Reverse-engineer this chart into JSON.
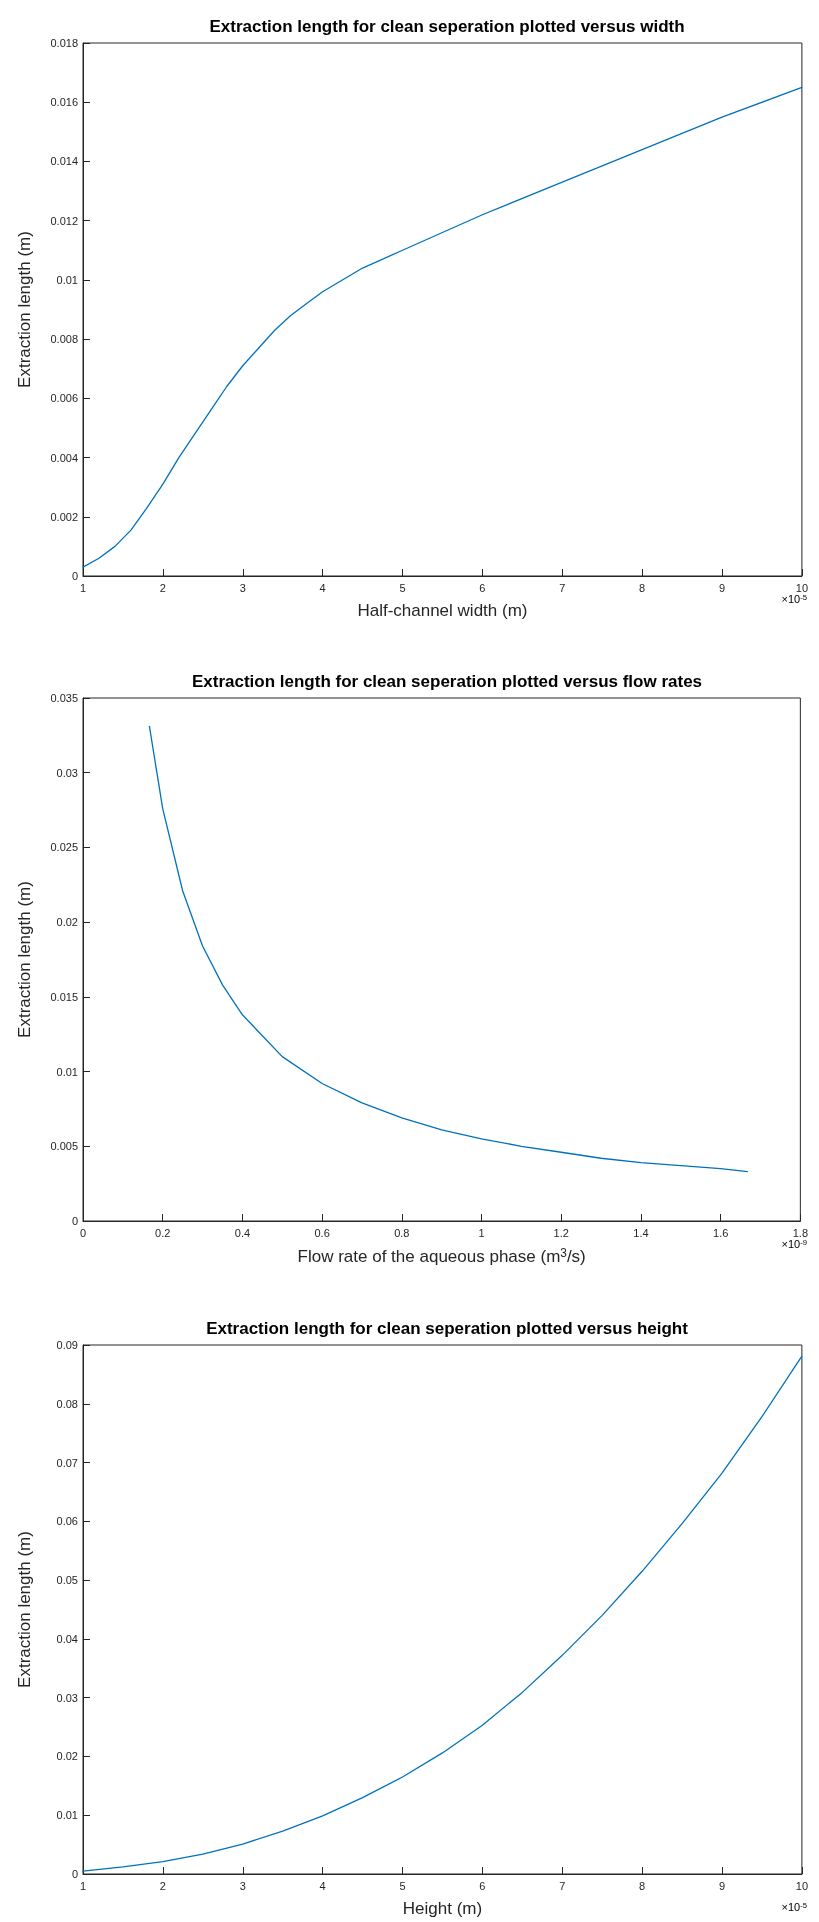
{
  "chart_data": [
    {
      "type": "line",
      "title": "Extraction length for clean seperation plotted versus width",
      "xlabel": "Half-channel width (m)",
      "ylabel": "Extraction length (m)",
      "annotations": [
        "×10$^{-5}$"
      ],
      "x": [
        1,
        1.2,
        1.4,
        1.6,
        1.8,
        2,
        2.2,
        2.4,
        2.6,
        2.8,
        3,
        3.2,
        3.4,
        3.6,
        3.8,
        4,
        4.5,
        5,
        5.5,
        6,
        7,
        8,
        9,
        10
      ],
      "series": [
        {
          "color": "#0072bd",
          "values": [
            0.0003,
            0.0006,
            0.001,
            0.00155,
            0.0023,
            0.0031,
            0.004,
            0.0048,
            0.0056,
            0.0064,
            0.0071,
            0.0077,
            0.0083,
            0.0088,
            0.0092,
            0.0096,
            0.0104,
            0.011,
            0.0116,
            0.0122,
            0.0133,
            0.0144,
            0.0155,
            0.0165
          ]
        }
      ],
      "xlim": [
        1,
        10
      ],
      "xticks": [
        1,
        2,
        3,
        4,
        5,
        6,
        7,
        8,
        9,
        10
      ],
      "ylim": [
        0,
        0.018
      ],
      "yticks": [
        0,
        0.002,
        0.004,
        0.006,
        0.008,
        0.01,
        0.012,
        0.014,
        0.016,
        0.018
      ],
      "marker": "none",
      "line_style": "solid"
    },
    {
      "type": "line",
      "title": "Extraction length for clean seperation plotted versus flow rates",
      "xlabel": "Flow rate of the aqueous phase (m$^{3}$/s)",
      "ylabel": "Extraction length (m)",
      "annotations": [
        "×10$^{-9}$"
      ],
      "x": [
        0.1667,
        0.2,
        0.25,
        0.3,
        0.35,
        0.4,
        0.5,
        0.6,
        0.7,
        0.8,
        0.9,
        1.0,
        1.1,
        1.2,
        1.3,
        1.4,
        1.5,
        1.6,
        1.667
      ],
      "series": [
        {
          "color": "#0072bd",
          "values": [
            0.0331,
            0.0276,
            0.0221,
            0.0184,
            0.0158,
            0.0138,
            0.011,
            0.0092,
            0.0079,
            0.0069,
            0.0061,
            0.0055,
            0.005,
            0.0046,
            0.0042,
            0.0039,
            0.0037,
            0.0035,
            0.0033
          ]
        }
      ],
      "xlim": [
        0,
        1.8
      ],
      "xticks": [
        0,
        0.2,
        0.4,
        0.6,
        0.8,
        1,
        1.2,
        1.4,
        1.6,
        1.8
      ],
      "ylim": [
        0,
        0.035
      ],
      "yticks": [
        0,
        0.005,
        0.01,
        0.015,
        0.02,
        0.025,
        0.03,
        0.035
      ],
      "marker": "none",
      "line_style": "solid"
    },
    {
      "type": "line",
      "title": "Extraction length for clean seperation plotted versus height",
      "xlabel": "Height (m)",
      "ylabel": "Extraction length (m)",
      "annotations": [
        "×10$^{-5}$"
      ],
      "x": [
        1,
        1.5,
        2,
        2.5,
        3,
        3.5,
        4,
        4.5,
        5,
        5.5,
        6,
        6.5,
        7,
        7.5,
        8,
        8.5,
        9,
        9.5,
        10
      ],
      "series": [
        {
          "color": "#0072bd",
          "values": [
            0.0005,
            0.0012,
            0.0021,
            0.0034,
            0.0051,
            0.0073,
            0.0099,
            0.013,
            0.0165,
            0.0206,
            0.0253,
            0.0309,
            0.0372,
            0.044,
            0.0515,
            0.0596,
            0.0682,
            0.0778,
            0.0881
          ]
        }
      ],
      "xlim": [
        1,
        10
      ],
      "xticks": [
        1,
        2,
        3,
        4,
        5,
        6,
        7,
        8,
        9,
        10
      ],
      "ylim": [
        0,
        0.09
      ],
      "yticks": [
        0,
        0.01,
        0.02,
        0.03,
        0.04,
        0.05,
        0.06,
        0.07,
        0.08,
        0.09
      ],
      "marker": "none",
      "line_style": "solid"
    }
  ]
}
